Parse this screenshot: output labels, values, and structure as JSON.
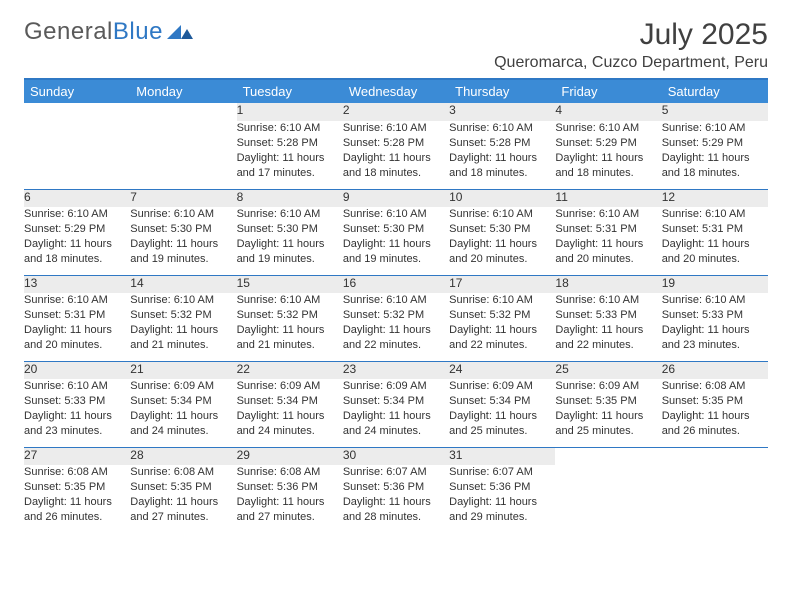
{
  "brand": {
    "part1": "General",
    "part2": "Blue"
  },
  "title": "July 2025",
  "location": "Queromarca, Cuzco Department, Peru",
  "colors": {
    "header_bg": "#3b8bd6",
    "divider": "#2f78c4",
    "daynum_bg": "#ececec",
    "text": "#333333",
    "background": "#ffffff"
  },
  "weekdays": [
    "Sunday",
    "Monday",
    "Tuesday",
    "Wednesday",
    "Thursday",
    "Friday",
    "Saturday"
  ],
  "weeks": [
    [
      null,
      null,
      {
        "n": "1",
        "sunrise": "6:10 AM",
        "sunset": "5:28 PM",
        "daylight": "11 hours and 17 minutes."
      },
      {
        "n": "2",
        "sunrise": "6:10 AM",
        "sunset": "5:28 PM",
        "daylight": "11 hours and 18 minutes."
      },
      {
        "n": "3",
        "sunrise": "6:10 AM",
        "sunset": "5:28 PM",
        "daylight": "11 hours and 18 minutes."
      },
      {
        "n": "4",
        "sunrise": "6:10 AM",
        "sunset": "5:29 PM",
        "daylight": "11 hours and 18 minutes."
      },
      {
        "n": "5",
        "sunrise": "6:10 AM",
        "sunset": "5:29 PM",
        "daylight": "11 hours and 18 minutes."
      }
    ],
    [
      {
        "n": "6",
        "sunrise": "6:10 AM",
        "sunset": "5:29 PM",
        "daylight": "11 hours and 18 minutes."
      },
      {
        "n": "7",
        "sunrise": "6:10 AM",
        "sunset": "5:30 PM",
        "daylight": "11 hours and 19 minutes."
      },
      {
        "n": "8",
        "sunrise": "6:10 AM",
        "sunset": "5:30 PM",
        "daylight": "11 hours and 19 minutes."
      },
      {
        "n": "9",
        "sunrise": "6:10 AM",
        "sunset": "5:30 PM",
        "daylight": "11 hours and 19 minutes."
      },
      {
        "n": "10",
        "sunrise": "6:10 AM",
        "sunset": "5:30 PM",
        "daylight": "11 hours and 20 minutes."
      },
      {
        "n": "11",
        "sunrise": "6:10 AM",
        "sunset": "5:31 PM",
        "daylight": "11 hours and 20 minutes."
      },
      {
        "n": "12",
        "sunrise": "6:10 AM",
        "sunset": "5:31 PM",
        "daylight": "11 hours and 20 minutes."
      }
    ],
    [
      {
        "n": "13",
        "sunrise": "6:10 AM",
        "sunset": "5:31 PM",
        "daylight": "11 hours and 20 minutes."
      },
      {
        "n": "14",
        "sunrise": "6:10 AM",
        "sunset": "5:32 PM",
        "daylight": "11 hours and 21 minutes."
      },
      {
        "n": "15",
        "sunrise": "6:10 AM",
        "sunset": "5:32 PM",
        "daylight": "11 hours and 21 minutes."
      },
      {
        "n": "16",
        "sunrise": "6:10 AM",
        "sunset": "5:32 PM",
        "daylight": "11 hours and 22 minutes."
      },
      {
        "n": "17",
        "sunrise": "6:10 AM",
        "sunset": "5:32 PM",
        "daylight": "11 hours and 22 minutes."
      },
      {
        "n": "18",
        "sunrise": "6:10 AM",
        "sunset": "5:33 PM",
        "daylight": "11 hours and 22 minutes."
      },
      {
        "n": "19",
        "sunrise": "6:10 AM",
        "sunset": "5:33 PM",
        "daylight": "11 hours and 23 minutes."
      }
    ],
    [
      {
        "n": "20",
        "sunrise": "6:10 AM",
        "sunset": "5:33 PM",
        "daylight": "11 hours and 23 minutes."
      },
      {
        "n": "21",
        "sunrise": "6:09 AM",
        "sunset": "5:34 PM",
        "daylight": "11 hours and 24 minutes."
      },
      {
        "n": "22",
        "sunrise": "6:09 AM",
        "sunset": "5:34 PM",
        "daylight": "11 hours and 24 minutes."
      },
      {
        "n": "23",
        "sunrise": "6:09 AM",
        "sunset": "5:34 PM",
        "daylight": "11 hours and 24 minutes."
      },
      {
        "n": "24",
        "sunrise": "6:09 AM",
        "sunset": "5:34 PM",
        "daylight": "11 hours and 25 minutes."
      },
      {
        "n": "25",
        "sunrise": "6:09 AM",
        "sunset": "5:35 PM",
        "daylight": "11 hours and 25 minutes."
      },
      {
        "n": "26",
        "sunrise": "6:08 AM",
        "sunset": "5:35 PM",
        "daylight": "11 hours and 26 minutes."
      }
    ],
    [
      {
        "n": "27",
        "sunrise": "6:08 AM",
        "sunset": "5:35 PM",
        "daylight": "11 hours and 26 minutes."
      },
      {
        "n": "28",
        "sunrise": "6:08 AM",
        "sunset": "5:35 PM",
        "daylight": "11 hours and 27 minutes."
      },
      {
        "n": "29",
        "sunrise": "6:08 AM",
        "sunset": "5:36 PM",
        "daylight": "11 hours and 27 minutes."
      },
      {
        "n": "30",
        "sunrise": "6:07 AM",
        "sunset": "5:36 PM",
        "daylight": "11 hours and 28 minutes."
      },
      {
        "n": "31",
        "sunrise": "6:07 AM",
        "sunset": "5:36 PM",
        "daylight": "11 hours and 29 minutes."
      },
      null,
      null
    ]
  ],
  "labels": {
    "sunrise": "Sunrise:",
    "sunset": "Sunset:",
    "daylight": "Daylight:"
  }
}
